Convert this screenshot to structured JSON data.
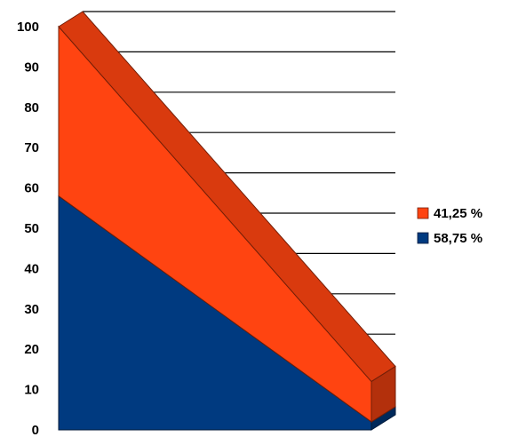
{
  "chart_data": {
    "type": "area",
    "stacked": true,
    "three_d": true,
    "x": [
      0,
      1
    ],
    "series": [
      {
        "name": "58,75 %",
        "values": [
          58,
          2
        ],
        "color": "#003a80"
      },
      {
        "name": "41,25 %",
        "values": [
          42,
          10
        ],
        "color": "#ff4411"
      }
    ],
    "ylim": [
      0,
      100
    ],
    "yticks": [
      "0",
      "10",
      "20",
      "30",
      "40",
      "50",
      "60",
      "70",
      "80",
      "90",
      "100"
    ],
    "grid": true,
    "legend_position": "right",
    "title": "",
    "xlabel": "",
    "ylabel": ""
  }
}
